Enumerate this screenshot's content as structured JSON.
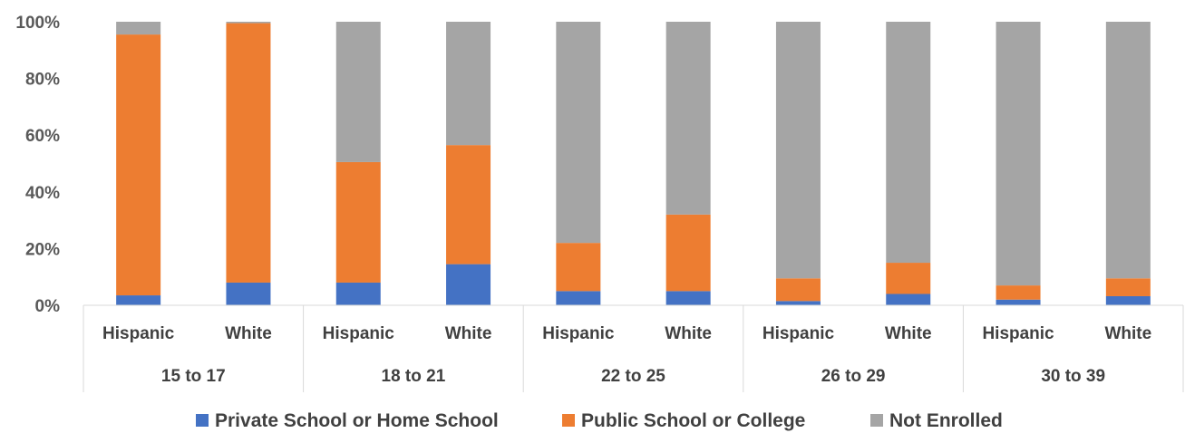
{
  "chart_data": {
    "type": "bar",
    "stacked": true,
    "percent": true,
    "groups": [
      "15 to 17",
      "18 to 21",
      "22 to 25",
      "26 to 29",
      "30 to 39"
    ],
    "subcategories": [
      "Hispanic",
      "White"
    ],
    "categories": [
      "Hispanic 15 to 17",
      "White 15 to 17",
      "Hispanic 18 to 21",
      "White 18 to 21",
      "Hispanic 22 to 25",
      "White 22 to 25",
      "Hispanic 26 to 29",
      "White 26 to 29",
      "Hispanic 30 to 39",
      "White 30 to 39"
    ],
    "series": [
      {
        "name": "Private School or Home School",
        "color": "#4472C4",
        "values": [
          3.5,
          8,
          8,
          14.5,
          5,
          5,
          1.5,
          4,
          2,
          3.2
        ]
      },
      {
        "name": "Public School or College",
        "color": "#ED7D31",
        "values": [
          92,
          91.5,
          42.5,
          42,
          17,
          27,
          8,
          11,
          5,
          6.3
        ]
      },
      {
        "name": "Not Enrolled",
        "color": "#A5A5A5",
        "values": [
          4.5,
          0.5,
          49.5,
          43.5,
          78,
          68,
          90.5,
          85,
          93,
          90.5
        ]
      }
    ],
    "yticks": [
      "0%",
      "20%",
      "40%",
      "60%",
      "80%",
      "100%"
    ],
    "ylim": [
      0,
      100
    ],
    "grid": false,
    "legend_position": "bottom"
  }
}
